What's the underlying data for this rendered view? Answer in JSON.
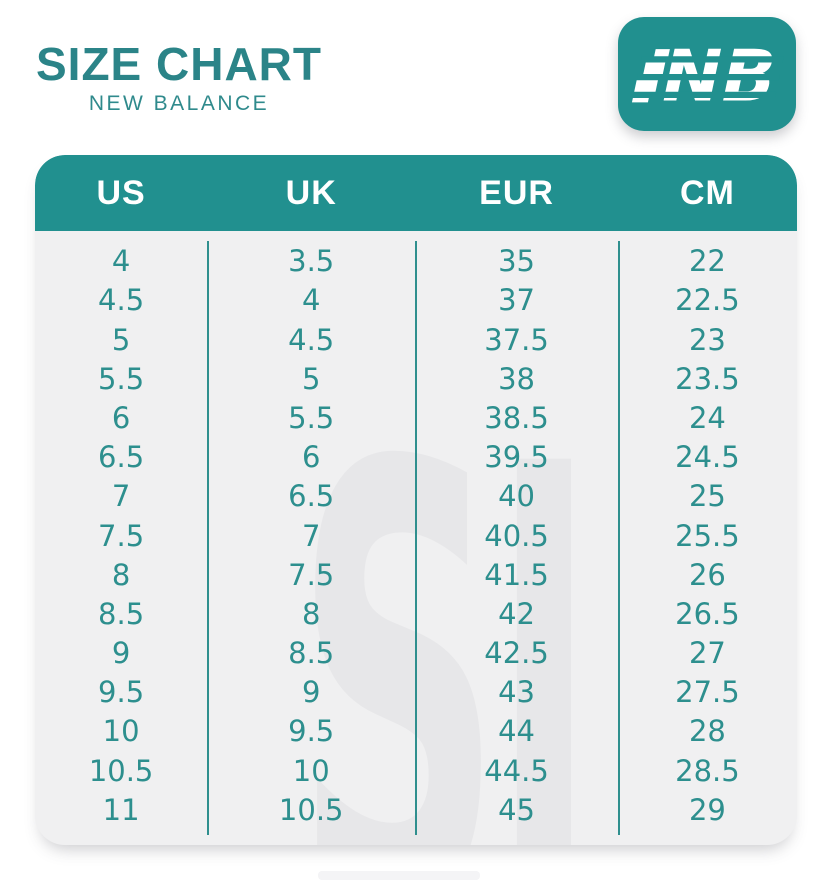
{
  "title": "SIZE CHART",
  "subtitle": "NEW BALANCE",
  "logo": {
    "name": "new-balance-nb-logo",
    "text": "NB"
  },
  "watermark": {
    "text": "SJ"
  },
  "colors": {
    "teal_header": "#21908f",
    "teal_title": "#2b8488",
    "teal_text": "#2d8f8e",
    "panel_background": "#f0f0f1",
    "watermark_gray": "#e7e7e9",
    "white": "#ffffff"
  },
  "table": {
    "headers": [
      "US",
      "UK",
      "EUR",
      "CM"
    ],
    "rows": [
      [
        "4",
        "3.5",
        "35",
        "22"
      ],
      [
        "4.5",
        "4",
        "37",
        "22.5"
      ],
      [
        "5",
        "4.5",
        "37.5",
        "23"
      ],
      [
        "5.5",
        "5",
        "38",
        "23.5"
      ],
      [
        "6",
        "5.5",
        "38.5",
        "24"
      ],
      [
        "6.5",
        "6",
        "39.5",
        "24.5"
      ],
      [
        "7",
        "6.5",
        "40",
        "25"
      ],
      [
        "7.5",
        "7",
        "40.5",
        "25.5"
      ],
      [
        "8",
        "7.5",
        "41.5",
        "26"
      ],
      [
        "8.5",
        "8",
        "42",
        "26.5"
      ],
      [
        "9",
        "8.5",
        "42.5",
        "27"
      ],
      [
        "9.5",
        "9",
        "43",
        "27.5"
      ],
      [
        "10",
        "9.5",
        "44",
        "28"
      ],
      [
        "10.5",
        "10",
        "44.5",
        "28.5"
      ],
      [
        "11",
        "10.5",
        "45",
        "29"
      ]
    ]
  },
  "chart_data": {
    "type": "table",
    "title": "SIZE CHART",
    "subtitle": "NEW BALANCE",
    "columns": [
      "US",
      "UK",
      "EUR",
      "CM"
    ],
    "rows": [
      [
        4,
        3.5,
        35,
        22
      ],
      [
        4.5,
        4,
        37,
        22.5
      ],
      [
        5,
        4.5,
        37.5,
        23
      ],
      [
        5.5,
        5,
        38,
        23.5
      ],
      [
        6,
        5.5,
        38.5,
        24
      ],
      [
        6.5,
        6,
        39.5,
        24.5
      ],
      [
        7,
        6.5,
        40,
        25
      ],
      [
        7.5,
        7,
        40.5,
        25.5
      ],
      [
        8,
        7.5,
        41.5,
        26
      ],
      [
        8.5,
        8,
        42,
        26.5
      ],
      [
        9,
        8.5,
        42.5,
        27
      ],
      [
        9.5,
        9,
        43,
        27.5
      ],
      [
        10,
        9.5,
        44,
        28
      ],
      [
        10.5,
        10,
        44.5,
        28.5
      ],
      [
        11,
        10.5,
        45,
        29
      ]
    ]
  }
}
